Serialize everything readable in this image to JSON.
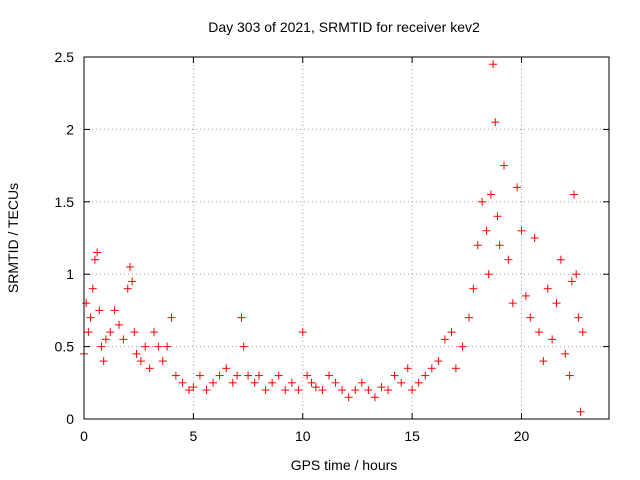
{
  "chart_data": {
    "type": "scatter",
    "title": "Day 303 of 2021, SRMTID for receiver kev2",
    "xlabel": "GPS time / hours",
    "ylabel": "SRMTID / TECUs",
    "xlim": [
      0,
      24
    ],
    "ylim": [
      0,
      2.5
    ],
    "x_ticks": [
      0,
      5,
      10,
      15,
      20
    ],
    "x_tick_labels": [
      "0",
      "5",
      "10",
      "15",
      "20"
    ],
    "y_ticks": [
      0,
      0.5,
      1,
      1.5,
      2,
      2.5
    ],
    "y_tick_labels": [
      "0",
      "0.5",
      "1",
      "1.5",
      "2",
      "2.5"
    ],
    "grid": true,
    "marker": "+",
    "color": "#ff0000",
    "series": [
      {
        "name": "SRMTID",
        "x": [
          0.0,
          0.1,
          0.2,
          0.3,
          0.4,
          0.5,
          0.6,
          0.7,
          0.8,
          0.9,
          1.0,
          1.2,
          1.4,
          1.6,
          1.8,
          2.0,
          2.1,
          2.2,
          2.3,
          2.4,
          2.6,
          2.8,
          3.0,
          3.2,
          3.4,
          3.6,
          3.8,
          4.0,
          4.2,
          4.5,
          4.8,
          5.0,
          5.3,
          5.6,
          5.9,
          6.2,
          6.5,
          6.8,
          7.0,
          7.2,
          7.3,
          7.5,
          7.8,
          8.0,
          8.3,
          8.6,
          8.9,
          9.2,
          9.5,
          9.8,
          10.0,
          10.2,
          10.4,
          10.6,
          10.9,
          11.2,
          11.5,
          11.8,
          12.1,
          12.4,
          12.7,
          13.0,
          13.3,
          13.6,
          13.9,
          14.2,
          14.5,
          14.8,
          15.0,
          15.3,
          15.6,
          15.9,
          16.2,
          16.5,
          16.8,
          17.0,
          17.3,
          17.6,
          17.8,
          18.0,
          18.2,
          18.4,
          18.5,
          18.6,
          18.7,
          18.8,
          18.9,
          19.0,
          19.2,
          19.4,
          19.6,
          19.8,
          20.0,
          20.2,
          20.4,
          20.6,
          20.8,
          21.0,
          21.2,
          21.4,
          21.6,
          21.8,
          22.0,
          22.2,
          22.3,
          22.4,
          22.5,
          22.6,
          22.7,
          22.8
        ],
        "y": [
          0.45,
          0.8,
          0.6,
          0.7,
          0.9,
          1.1,
          1.15,
          0.75,
          0.5,
          0.4,
          0.55,
          0.6,
          0.75,
          0.65,
          0.55,
          0.9,
          1.05,
          0.95,
          0.6,
          0.45,
          0.4,
          0.5,
          0.35,
          0.6,
          0.5,
          0.4,
          0.5,
          0.7,
          0.3,
          0.25,
          0.2,
          0.22,
          0.3,
          0.2,
          0.25,
          0.3,
          0.35,
          0.25,
          0.3,
          0.7,
          0.5,
          0.3,
          0.25,
          0.3,
          0.2,
          0.25,
          0.3,
          0.2,
          0.25,
          0.2,
          0.6,
          0.3,
          0.25,
          0.22,
          0.2,
          0.3,
          0.25,
          0.2,
          0.15,
          0.2,
          0.25,
          0.2,
          0.15,
          0.22,
          0.2,
          0.3,
          0.25,
          0.35,
          0.2,
          0.25,
          0.3,
          0.35,
          0.4,
          0.55,
          0.6,
          0.35,
          0.5,
          0.7,
          0.9,
          1.2,
          1.5,
          1.3,
          1.0,
          1.55,
          2.45,
          2.05,
          1.4,
          1.2,
          1.75,
          1.1,
          0.8,
          1.6,
          1.3,
          0.85,
          0.7,
          1.25,
          0.6,
          0.4,
          0.9,
          0.55,
          0.8,
          1.1,
          0.45,
          0.3,
          0.95,
          1.55,
          1.0,
          0.7,
          0.05,
          0.6
        ]
      }
    ]
  }
}
